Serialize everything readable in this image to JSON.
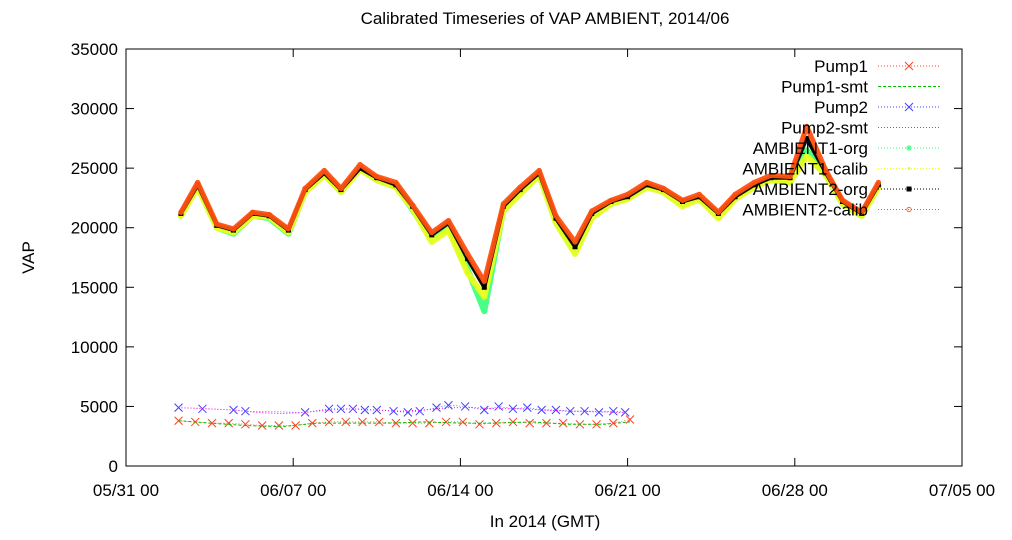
{
  "chart_data": {
    "type": "line",
    "title": "Calibrated Timeseries of VAP AMBIENT, 2014/06",
    "xlabel": "In 2014 (GMT)",
    "ylabel": "VAP",
    "x_start": "2014-05-31 00:00",
    "x_end": "2014-07-05 00:00",
    "x_range_days": [
      0,
      35
    ],
    "ylim": [
      0,
      35000
    ],
    "x_ticks": [
      {
        "label": "05/31 00",
        "day": 0
      },
      {
        "label": "06/07 00",
        "day": 7
      },
      {
        "label": "06/14 00",
        "day": 14
      },
      {
        "label": "06/21 00",
        "day": 21
      },
      {
        "label": "06/28 00",
        "day": 28
      },
      {
        "label": "07/05 00",
        "day": 35
      }
    ],
    "y_ticks": [
      0,
      5000,
      10000,
      15000,
      20000,
      25000,
      30000,
      35000
    ],
    "y_tick_labels": [
      "0",
      "5000",
      "10000",
      "15000",
      "20000",
      "25000",
      "30000",
      "35000"
    ],
    "grid": false,
    "legend_position": "top-right",
    "series": [
      {
        "name": "Pump1",
        "color": "#ff4020",
        "marker": "x",
        "style": "points",
        "x": [
          2.2,
          2.9,
          3.6,
          4.3,
          5.0,
          5.7,
          6.4,
          7.1,
          7.8,
          8.5,
          9.2,
          9.9,
          10.6,
          11.3,
          12.0,
          12.7,
          13.4,
          14.1,
          14.8,
          15.5,
          16.2,
          16.9,
          17.6,
          18.3,
          19.0,
          19.7,
          20.4,
          21.1
        ],
        "y": [
          3800,
          3700,
          3600,
          3600,
          3500,
          3400,
          3400,
          3400,
          3600,
          3700,
          3700,
          3700,
          3700,
          3600,
          3600,
          3600,
          3700,
          3700,
          3500,
          3600,
          3700,
          3600,
          3600,
          3600,
          3500,
          3500,
          3600,
          3900
        ]
      },
      {
        "name": "Pump1-smt",
        "color": "#00c000",
        "marker": "none",
        "style": "dashed",
        "x": [
          2.2,
          3.5,
          5.0,
          6.5,
          8.0,
          9.5,
          11.0,
          12.5,
          14.0,
          15.5,
          17.0,
          18.5,
          20.0,
          21.1
        ],
        "y": [
          3800,
          3600,
          3400,
          3300,
          3600,
          3600,
          3600,
          3700,
          3600,
          3600,
          3700,
          3500,
          3500,
          3700
        ]
      },
      {
        "name": "Pump2",
        "color": "#4040ff",
        "marker": "x",
        "style": "points",
        "x": [
          2.2,
          3.2,
          4.5,
          5.0,
          7.5,
          8.5,
          9.0,
          9.5,
          10.0,
          10.5,
          11.2,
          11.8,
          12.3,
          13.0,
          13.5,
          14.2,
          15.0,
          15.6,
          16.2,
          16.8,
          17.4,
          18.0,
          18.6,
          19.2,
          19.8,
          20.4,
          20.9
        ],
        "y": [
          4900,
          4800,
          4700,
          4600,
          4500,
          4800,
          4800,
          4800,
          4700,
          4700,
          4600,
          4500,
          4600,
          4900,
          5100,
          5000,
          4700,
          5000,
          4800,
          4900,
          4700,
          4700,
          4600,
          4600,
          4500,
          4600,
          4500
        ]
      },
      {
        "name": "Pump2-smt",
        "color": "#ff00ff",
        "marker": "none",
        "style": "dotted",
        "x": [
          2.2,
          3.5,
          4.5,
          5.5,
          6.5,
          7.5,
          8.5,
          9.5,
          10.5,
          11.5,
          12.5,
          13.5,
          14.5,
          15.5,
          16.5,
          17.5,
          18.5,
          19.5,
          20.5,
          21.0
        ],
        "y": [
          4900,
          4800,
          4700,
          4500,
          4400,
          4500,
          4700,
          4800,
          4700,
          4600,
          4700,
          4900,
          4900,
          4800,
          4800,
          4700,
          4600,
          4600,
          4500,
          4500
        ]
      },
      {
        "name": "AMBIENT1-org",
        "color": "#40ff80",
        "marker": "star",
        "style": "points",
        "x": [
          2.3,
          3.0,
          3.8,
          4.5,
          5.3,
          6.0,
          6.8,
          7.5,
          8.3,
          9.0,
          9.8,
          10.5,
          11.3,
          12.0,
          12.8,
          13.5,
          14.3,
          15.0,
          15.8,
          16.5,
          17.3,
          18.0,
          18.8,
          19.5,
          20.3,
          21.0,
          21.8,
          22.5,
          23.3,
          24.0,
          24.8,
          25.5,
          26.3,
          27.0,
          27.8,
          28.5,
          29.3,
          30.0,
          30.8,
          31.5
        ],
        "y": [
          21000,
          23500,
          20000,
          19500,
          21000,
          20800,
          19500,
          23000,
          24500,
          23000,
          25000,
          24000,
          23500,
          21500,
          19000,
          20000,
          16500,
          13000,
          21500,
          23000,
          24500,
          20500,
          18000,
          21000,
          22000,
          22500,
          23500,
          23000,
          22000,
          22500,
          21000,
          22500,
          23500,
          24000,
          24000,
          26500,
          24500,
          22000,
          21000,
          23500
        ]
      },
      {
        "name": "AMBIENT1-calib",
        "color": "#e8ff20",
        "marker": "dot",
        "style": "points",
        "x": [
          2.3,
          3.0,
          3.8,
          4.5,
          5.3,
          6.0,
          6.8,
          7.5,
          8.3,
          9.0,
          9.8,
          10.5,
          11.3,
          12.0,
          12.8,
          13.5,
          14.3,
          15.0,
          15.8,
          16.5,
          17.3,
          18.0,
          18.8,
          19.5,
          20.3,
          21.0,
          21.8,
          22.5,
          23.3,
          24.0,
          24.8,
          25.5,
          26.3,
          27.0,
          27.8,
          28.5,
          29.3,
          30.0,
          30.8,
          31.5
        ],
        "y": [
          21000,
          23400,
          20000,
          19600,
          21000,
          20900,
          19600,
          23000,
          24400,
          23000,
          24900,
          24000,
          23400,
          21600,
          18800,
          19800,
          16200,
          14200,
          21400,
          22800,
          24400,
          20400,
          17800,
          20800,
          22000,
          22400,
          23400,
          23000,
          21800,
          22400,
          20800,
          22400,
          23400,
          24000,
          23800,
          26000,
          24400,
          22000,
          21000,
          23400
        ]
      },
      {
        "name": "AMBIENT2-org",
        "color": "#000000",
        "marker": "square",
        "style": "points",
        "x": [
          2.3,
          3.0,
          3.8,
          4.5,
          5.3,
          6.0,
          6.8,
          7.5,
          8.3,
          9.0,
          9.8,
          10.5,
          11.3,
          12.0,
          12.8,
          13.5,
          14.3,
          15.0,
          15.8,
          16.5,
          17.3,
          18.0,
          18.8,
          19.5,
          20.3,
          21.0,
          21.8,
          22.5,
          23.3,
          24.0,
          24.8,
          25.5,
          26.3,
          27.0,
          27.8,
          28.5,
          29.3,
          30.0,
          30.8,
          31.5
        ],
        "y": [
          21200,
          23600,
          20200,
          19800,
          21200,
          21000,
          19800,
          23200,
          24600,
          23200,
          25000,
          24200,
          23600,
          21800,
          19400,
          20400,
          17400,
          15000,
          21800,
          23200,
          24600,
          20800,
          18400,
          21200,
          22200,
          22600,
          23600,
          23200,
          22200,
          22600,
          21200,
          22600,
          23600,
          24200,
          24200,
          27500,
          24600,
          22200,
          21200,
          23600
        ]
      },
      {
        "name": "AMBIENT2-calib",
        "color": "#ff5010",
        "marker": "circle",
        "style": "points",
        "x": [
          2.3,
          3.0,
          3.8,
          4.5,
          5.3,
          6.0,
          6.8,
          7.5,
          8.3,
          9.0,
          9.8,
          10.5,
          11.3,
          12.0,
          12.8,
          13.5,
          14.3,
          15.0,
          15.8,
          16.5,
          17.3,
          18.0,
          18.8,
          19.5,
          20.3,
          21.0,
          21.8,
          22.5,
          23.3,
          24.0,
          24.8,
          25.5,
          26.3,
          27.0,
          27.8,
          28.5,
          29.3,
          30.0,
          30.8,
          31.5
        ],
        "y": [
          21300,
          23800,
          20300,
          19900,
          21300,
          21100,
          19900,
          23300,
          24800,
          23300,
          25300,
          24300,
          23800,
          21900,
          19600,
          20600,
          17800,
          15500,
          22000,
          23400,
          24800,
          21000,
          18800,
          21400,
          22300,
          22800,
          23800,
          23300,
          22300,
          22800,
          21300,
          22800,
          23800,
          24400,
          24300,
          28500,
          24800,
          22300,
          21300,
          23800
        ]
      }
    ]
  }
}
